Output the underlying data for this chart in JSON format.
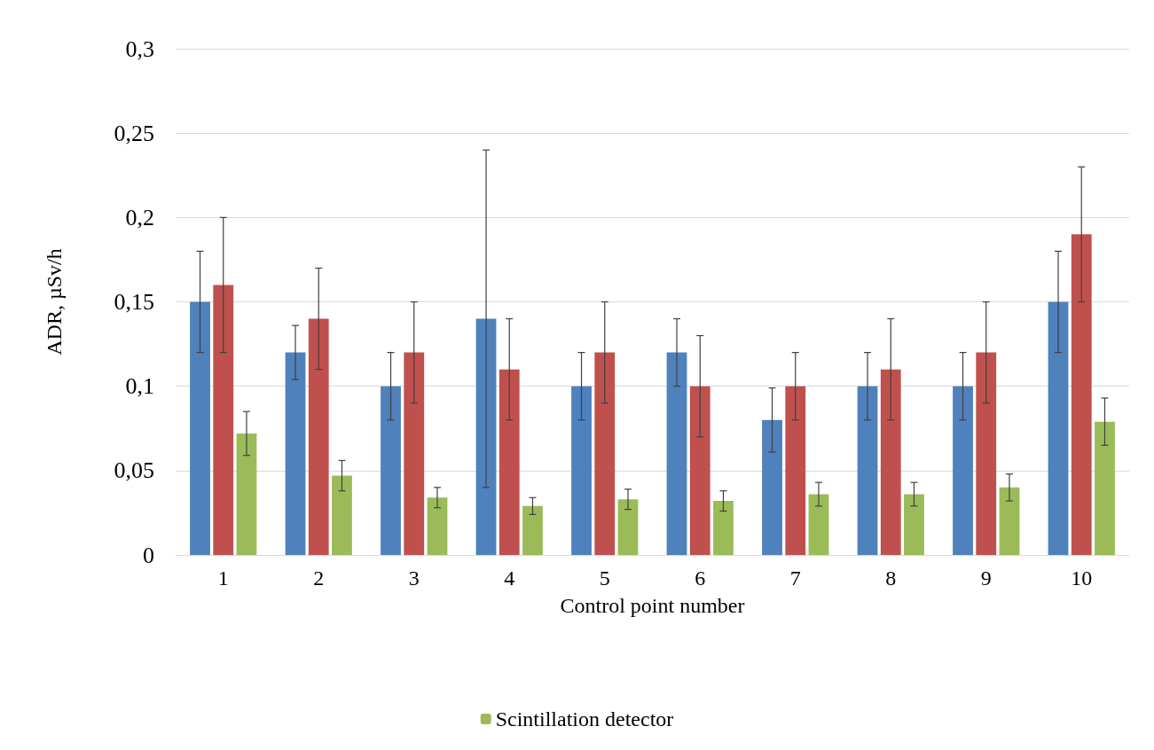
{
  "chart_data": {
    "type": "bar",
    "xlabel": "Control point number",
    "ylabel": "ADR, µSv/h",
    "categories": [
      "1",
      "2",
      "3",
      "4",
      "5",
      "6",
      "7",
      "8",
      "9",
      "10"
    ],
    "series": [
      {
        "color": "#4f81bd",
        "values": [
          0.15,
          0.12,
          0.1,
          0.14,
          0.1,
          0.12,
          0.08,
          0.1,
          0.1,
          0.15
        ],
        "errors": [
          [
            0.12,
            0.18
          ],
          [
            0.104,
            0.136
          ],
          [
            0.08,
            0.12
          ],
          [
            0.04,
            0.24
          ],
          [
            0.08,
            0.12
          ],
          [
            0.1,
            0.14
          ],
          [
            0.061,
            0.099
          ],
          [
            0.08,
            0.12
          ],
          [
            0.08,
            0.12
          ],
          [
            0.12,
            0.18
          ]
        ]
      },
      {
        "color": "#c0504d",
        "values": [
          0.16,
          0.14,
          0.12,
          0.11,
          0.12,
          0.1,
          0.1,
          0.11,
          0.12,
          0.19
        ],
        "errors": [
          [
            0.12,
            0.2
          ],
          [
            0.11,
            0.17
          ],
          [
            0.09,
            0.15
          ],
          [
            0.08,
            0.14
          ],
          [
            0.09,
            0.15
          ],
          [
            0.07,
            0.13
          ],
          [
            0.08,
            0.12
          ],
          [
            0.08,
            0.14
          ],
          [
            0.09,
            0.15
          ],
          [
            0.15,
            0.23
          ]
        ]
      },
      {
        "name": "Scintillation detector",
        "color": "#9bbb59",
        "values": [
          0.072,
          0.047,
          0.034,
          0.029,
          0.033,
          0.032,
          0.036,
          0.036,
          0.04,
          0.079
        ],
        "errors": [
          [
            0.059,
            0.085
          ],
          [
            0.038,
            0.056
          ],
          [
            0.028,
            0.04
          ],
          [
            0.024,
            0.034
          ],
          [
            0.027,
            0.039
          ],
          [
            0.026,
            0.038
          ],
          [
            0.029,
            0.043
          ],
          [
            0.029,
            0.043
          ],
          [
            0.032,
            0.048
          ],
          [
            0.065,
            0.093
          ]
        ]
      }
    ],
    "ylim": [
      0,
      0.3
    ],
    "yticks": [
      0,
      {
        "value": 0.05,
        "label": "0,05"
      },
      {
        "value": 0.1,
        "label": "0,1"
      },
      {
        "value": 0.15,
        "label": "0,15"
      },
      {
        "value": 0.2,
        "label": "0,2"
      },
      {
        "value": 0.25,
        "label": "0,25"
      },
      {
        "value": 0.3,
        "label": "0,3"
      }
    ],
    "grid": "y",
    "legend": "bottom"
  }
}
